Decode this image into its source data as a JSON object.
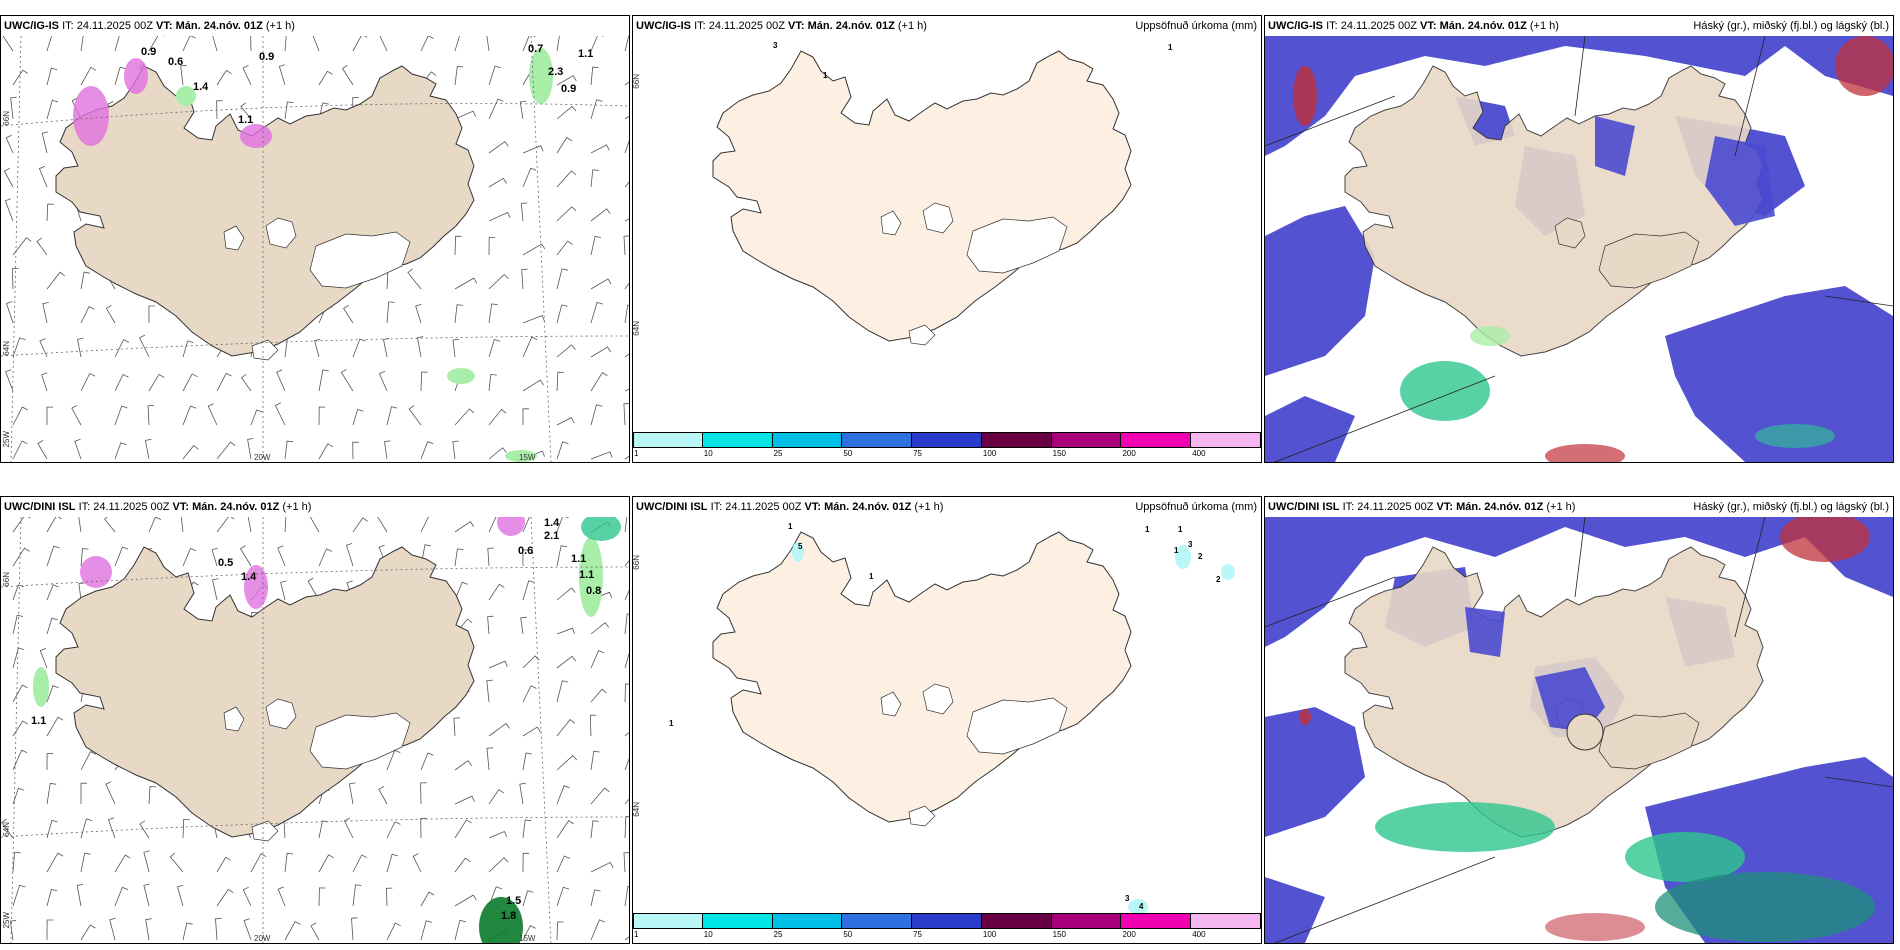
{
  "colors": {
    "land": "#e8d8c6",
    "land_precip": "#fdf0e3",
    "ice": "#ffffff",
    "cloud_high": "#4a4ad0",
    "cloud_mid": "#2ec78e",
    "cloud_low": "#c0303a",
    "precip_light": "#a8eea8"
  },
  "panels": [
    {
      "model": "UWC/IG-IS",
      "it": "IT: 24.11.2025 00Z",
      "vt": "VT: Mán. 24.nóv. 01Z",
      "lead": "(+1 h)",
      "values": [
        "0.6",
        "0.9",
        "1.4",
        "0.7",
        "1.1",
        "2.3",
        "0.9",
        "1.1",
        "0.9"
      ],
      "ticks": {
        "lat": [
          "66N",
          "64N"
        ],
        "lon": [
          "25W",
          "20W",
          "15W"
        ]
      }
    },
    {
      "model": "UWC/IG-IS",
      "it": "IT: 24.11.2025 00Z",
      "vt": "VT: Mán. 24.nóv. 01Z",
      "lead": "(+1 h)",
      "right_title": "Uppsöfnuð úrkoma (mm)",
      "values": [
        "3",
        "1",
        "1"
      ],
      "ticks": {
        "lat": [
          "66N",
          "64N"
        ]
      }
    },
    {
      "model": "UWC/IG-IS",
      "it": "IT: 24.11.2025 00Z",
      "vt": "VT: Mán. 24.nóv. 01Z",
      "lead": "(+1 h)",
      "right_title": "Háský (gr.), miðský (fj.bl.) og lágský (bl.)"
    },
    {
      "model": "UWC/DINI ISL",
      "it": "IT: 24.11.2025 00Z",
      "vt": "VT: Mán. 24.nóv. 01Z",
      "lead": "(+1 h)",
      "values": [
        "1.1",
        "0.5",
        "1.4",
        "0.6",
        "1.4",
        "2.1",
        "1.1",
        "0.8",
        "1.1",
        "1.5",
        "1.8"
      ],
      "ticks": {
        "lat": [
          "66N",
          "64N"
        ],
        "lon": [
          "25W",
          "20W",
          "15W"
        ]
      }
    },
    {
      "model": "UWC/DINI ISL",
      "it": "IT: 24.11.2025 00Z",
      "vt": "VT: Mán. 24.nóv. 01Z",
      "lead": "(+1 h)",
      "right_title": "Uppsöfnuð úrkoma (mm)",
      "values": [
        "1",
        "5",
        "1",
        "1",
        "1",
        "3",
        "1",
        "2",
        "2",
        "1",
        "3",
        "4"
      ],
      "ticks": {
        "lat": [
          "66N",
          "64N"
        ]
      }
    },
    {
      "model": "UWC/DINI ISL",
      "it": "IT: 24.11.2025 00Z",
      "vt": "VT: Mán. 24.nóv. 01Z",
      "lead": "(+1 h)",
      "right_title": "Háský (gr.), miðský (fj.bl.) og lágský (bl.)"
    }
  ],
  "colorbar": {
    "labels": [
      "1",
      "10",
      "25",
      "50",
      "75",
      "100",
      "150",
      "200",
      "400"
    ],
    "colors": [
      "#b9f6f6",
      "#00e5e5",
      "#00bfe6",
      "#2f6fe0",
      "#2b3bc9",
      "#6a0044",
      "#a8007a",
      "#f000b0",
      "#f6b6ef"
    ]
  }
}
